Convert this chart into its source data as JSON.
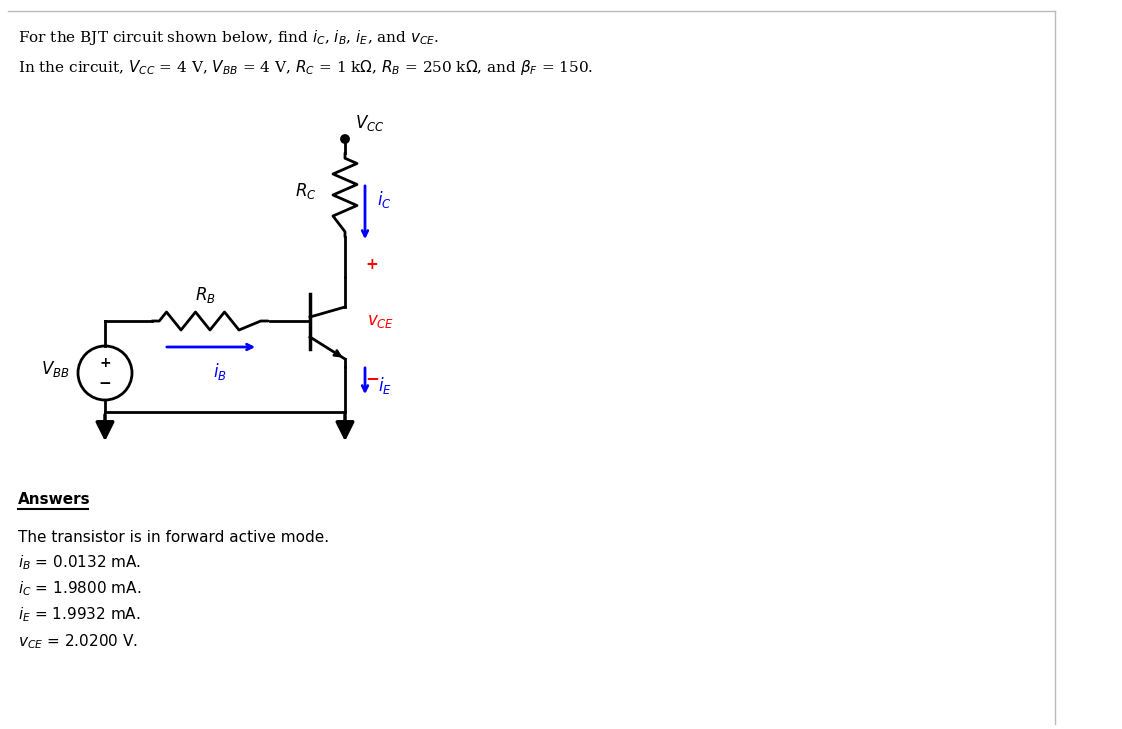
{
  "bg_color": "#ffffff",
  "fig_width": 11.22,
  "fig_height": 7.29,
  "blue": "#0000FF",
  "red": "#FF0000",
  "black": "#000000",
  "line1": "For the BJT circuit shown below, find $i_C$, $i_B$, $i_E$, and $v_{CE}$.",
  "line2": "In the circuit, $V_{CC}$ = 4 V, $V_{BB}$ = 4 V, $R_C$ = 1 k$\\Omega$, $R_B$ = 250 k$\\Omega$, and $\\beta_F$ = 150.",
  "answer_header": "Answers",
  "answer_line1": "The transistor is in forward active mode.",
  "answer_line2": "$i_B$ = 0.0132 mA.",
  "answer_line3": "$i_C$ = 1.9800 mA.",
  "answer_line4": "$i_E$ = 1.9932 mA.",
  "answer_line5": "$v_{CE}$ = 2.0200 V.",
  "vcc_label": "$V_{CC}$",
  "rc_label": "$R_C$",
  "rb_label": "$R_B$",
  "vbb_label": "$V_{BB}$",
  "ic_label": "$i_C$",
  "ib_label": "$i_B$",
  "ie_label": "$i_E$",
  "vce_label": "$v_{CE}$"
}
